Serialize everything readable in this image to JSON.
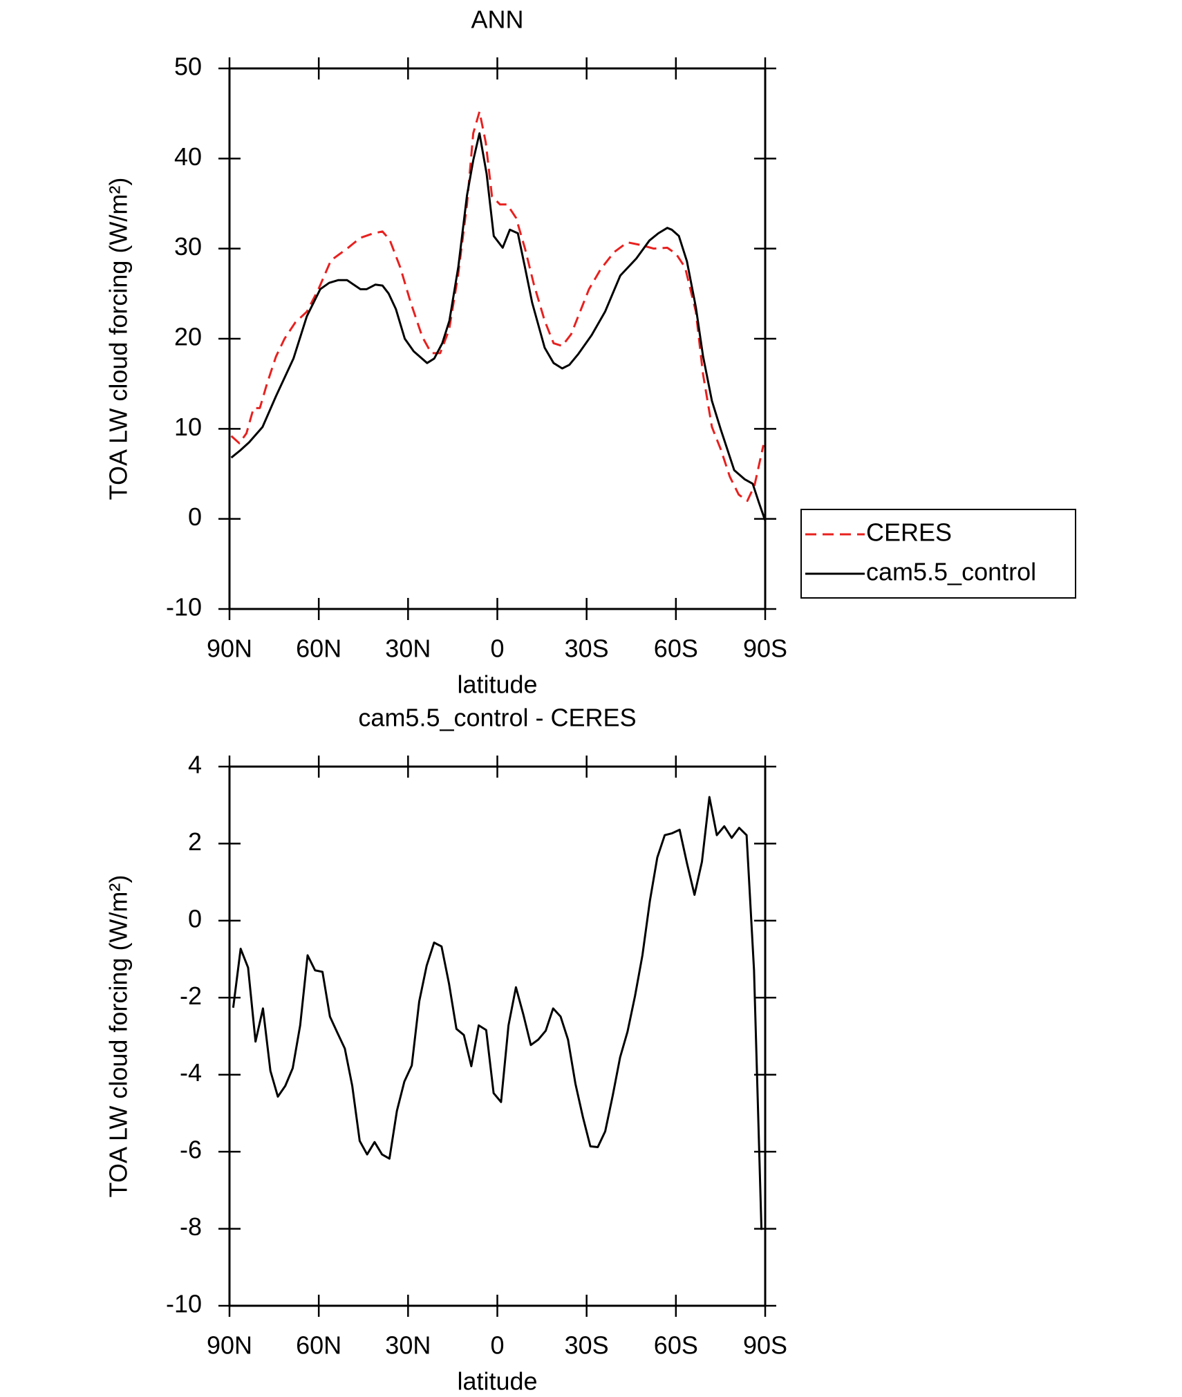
{
  "chart_data": [
    {
      "type": "line",
      "title": "ANN",
      "xlabel": "latitude",
      "ylabel": "TOA LW cloud forcing (W/m²)",
      "xlim": [
        90,
        -90
      ],
      "xticks": [
        {
          "value": 90,
          "label": "90N"
        },
        {
          "value": 60,
          "label": "60N"
        },
        {
          "value": 30,
          "label": "30N"
        },
        0,
        {
          "value": -30,
          "label": "30S"
        },
        {
          "value": -60,
          "label": "60S"
        },
        {
          "value": -90,
          "label": "90S"
        }
      ],
      "ylim": [
        -10,
        50
      ],
      "yticks": [
        -10,
        0,
        10,
        20,
        30,
        40,
        50
      ],
      "legend": "outside-right",
      "series": [
        {
          "name": "CERES",
          "color": "#e8201e",
          "style": "dashed",
          "x": [
            89.4,
            86.7,
            84.3,
            81.9,
            79.8,
            77.4,
            74.4,
            71.5,
            67.9,
            64,
            60.1,
            55.9,
            50.5,
            46,
            41.6,
            38.6,
            36.2,
            32.6,
            29.1,
            25.2,
            22.2,
            19.2,
            16.2,
            13.2,
            10.2,
            8.1,
            6,
            3.9,
            1.8,
            -0.9,
            -3.3,
            -6.3,
            -9.3,
            -12.3,
            -15.9,
            -18.9,
            -21.8,
            -24.8,
            -27.8,
            -30.8,
            -34.7,
            -39.2,
            -43.7,
            -48.2,
            -52.6,
            -57.1,
            -60.1,
            -63.1,
            -66.7,
            -69.1,
            -72.1,
            -75.1,
            -78.1,
            -81.1,
            -84,
            -86.4,
            -89.4
          ],
          "values": [
            9.2,
            8.4,
            9.5,
            12.3,
            12.3,
            15,
            18,
            20,
            21.8,
            23,
            25.5,
            28.7,
            30,
            31.2,
            31.7,
            31.9,
            31,
            27.9,
            24,
            20.2,
            18.4,
            18.4,
            21,
            27,
            34.9,
            42.8,
            45.2,
            41.8,
            35.8,
            34.9,
            34.9,
            33.4,
            30,
            26,
            22,
            19.5,
            19.2,
            20.5,
            23,
            25.5,
            27.7,
            29.6,
            30.7,
            30.4,
            30,
            30.1,
            29.4,
            27.9,
            23,
            16.1,
            10.2,
            7.7,
            4.7,
            2.7,
            2,
            3.7,
            8.2
          ]
        },
        {
          "name": "cam5.5_control",
          "color": "#000000",
          "style": "solid",
          "x": [
            89.4,
            86.4,
            83.4,
            78.9,
            74.4,
            68.5,
            64,
            59.5,
            56.5,
            53.5,
            50.5,
            46,
            43.9,
            41,
            38.6,
            36.5,
            34.1,
            31.1,
            28.1,
            23.6,
            21.2,
            18.5,
            16.1,
            13.1,
            10.2,
            8.1,
            6,
            3.6,
            1.2,
            -1.8,
            -4.2,
            -6.9,
            -9.3,
            -11.7,
            -15.9,
            -18.9,
            -21.8,
            -24.2,
            -27.2,
            -31.7,
            -36.2,
            -41.3,
            -46.7,
            -51.1,
            -54.1,
            -57.1,
            -58.6,
            -61,
            -63.7,
            -66.7,
            -69.1,
            -72.1,
            -75.1,
            -79.6,
            -83.1,
            -85.8,
            -87.9,
            -90
          ],
          "values": [
            6.8,
            7.6,
            8.5,
            10.2,
            13.6,
            17.8,
            22.5,
            25.5,
            26.2,
            26.5,
            26.5,
            25.5,
            25.5,
            26,
            25.9,
            25,
            23.3,
            20,
            18.6,
            17.3,
            17.8,
            19.5,
            22,
            28,
            35.9,
            39.8,
            42.8,
            38.3,
            31.4,
            30.1,
            32.1,
            31.7,
            27.9,
            24,
            19,
            17.3,
            16.7,
            17.1,
            18.3,
            20.4,
            23,
            27,
            28.9,
            30.9,
            31.7,
            32.3,
            32.1,
            31.4,
            28.6,
            23.5,
            18.1,
            13.1,
            9.9,
            5.4,
            4.4,
            3.9,
            1.8,
            -0.2
          ]
        }
      ]
    },
    {
      "type": "line",
      "title": "cam5.5_control - CERES",
      "xlabel": "latitude",
      "ylabel": "TOA LW cloud forcing (W/m²)",
      "xlim": [
        90,
        -90
      ],
      "xticks": [
        {
          "value": 90,
          "label": "90N"
        },
        {
          "value": 60,
          "label": "60N"
        },
        {
          "value": 30,
          "label": "30N"
        },
        0,
        {
          "value": -30,
          "label": "30S"
        },
        {
          "value": -60,
          "label": "60S"
        },
        {
          "value": -90,
          "label": "90S"
        }
      ],
      "ylim": [
        -10,
        4
      ],
      "yticks": [
        -10,
        -8,
        -6,
        -4,
        -2,
        0,
        2,
        4
      ],
      "x": [
        88.75,
        86.25,
        83.75,
        81.25,
        78.75,
        76.25,
        73.75,
        71.25,
        68.75,
        66.25,
        63.75,
        61.25,
        58.75,
        56.25,
        53.75,
        51.25,
        48.75,
        46.25,
        43.75,
        41.25,
        38.75,
        36.25,
        33.75,
        31.25,
        28.75,
        26.25,
        23.75,
        21.25,
        18.75,
        16.25,
        13.75,
        11.25,
        8.75,
        6.25,
        3.75,
        1.25,
        -1.25,
        -3.75,
        -6.25,
        -8.75,
        -11.25,
        -13.75,
        -16.25,
        -18.75,
        -21.25,
        -23.75,
        -26.25,
        -28.75,
        -31.25,
        -33.75,
        -36.25,
        -38.75,
        -41.25,
        -43.75,
        -46.25,
        -48.75,
        -51.25,
        -53.75,
        -56.25,
        -58.75,
        -61.25,
        -63.75,
        -66.25,
        -68.75,
        -71.25,
        -73.75,
        -76.25,
        -78.75,
        -81.25,
        -83.75,
        -86.25,
        -88.75
      ],
      "series": [
        {
          "color": "#000000",
          "style": "solid",
          "values": [
            -2.26,
            -0.73,
            -1.22,
            -3.14,
            -2.28,
            -3.9,
            -4.57,
            -4.29,
            -3.83,
            -2.72,
            -0.9,
            -1.29,
            -1.33,
            -2.49,
            -2.91,
            -3.32,
            -4.29,
            -5.72,
            -6.07,
            -5.75,
            -6.07,
            -6.18,
            -4.94,
            -4.18,
            -3.76,
            -2.1,
            -1.17,
            -0.57,
            -0.67,
            -1.63,
            -2.81,
            -2.97,
            -3.78,
            -2.72,
            -2.84,
            -4.48,
            -4.71,
            -2.72,
            -1.73,
            -2.44,
            -3.23,
            -3.09,
            -2.86,
            -2.28,
            -2.49,
            -3.09,
            -4.24,
            -5.1,
            -5.86,
            -5.88,
            -5.47,
            -4.55,
            -3.55,
            -2.88,
            -1.96,
            -0.9,
            0.51,
            1.64,
            2.22,
            2.27,
            2.36,
            1.48,
            0.67,
            1.53,
            3.21,
            2.22,
            2.45,
            2.15,
            2.41,
            2.22,
            -1.29,
            -8.03
          ]
        }
      ]
    }
  ]
}
